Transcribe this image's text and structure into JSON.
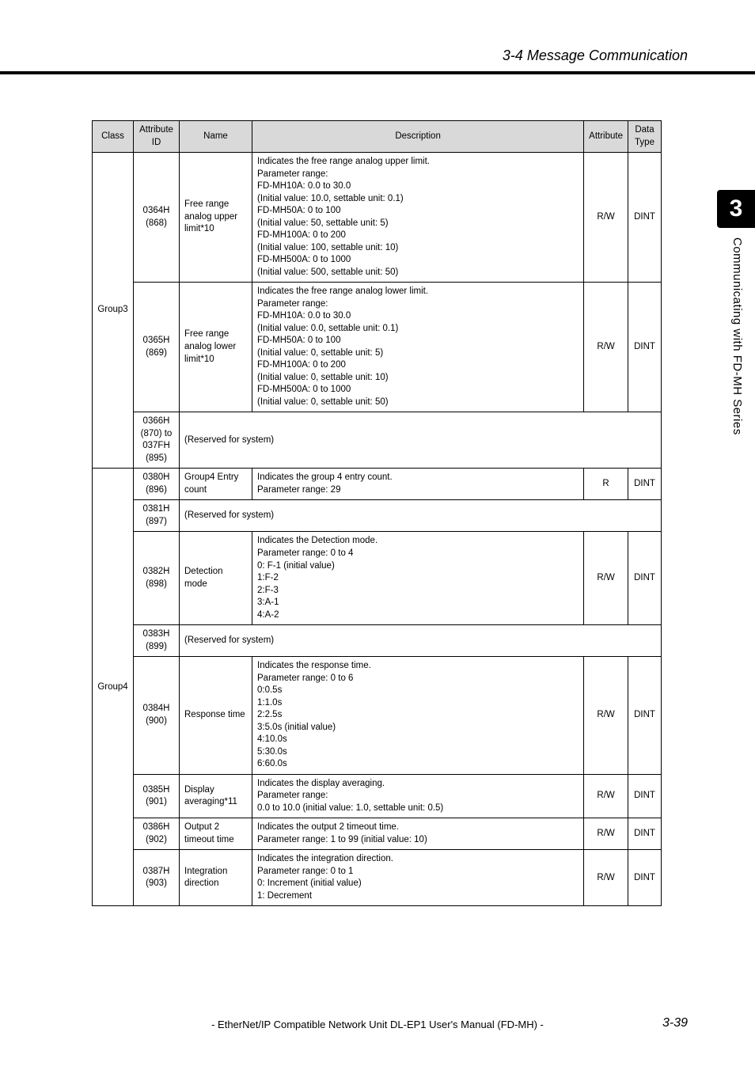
{
  "header": {
    "section_title": "3-4 Message Communication"
  },
  "side": {
    "chapter_num": "3",
    "chapter_text": "Communicating with FD-MH Series"
  },
  "table": {
    "headers": {
      "class": "Class",
      "attr_id": "Attribute ID",
      "name": "Name",
      "description": "Description",
      "attribute": "Attribute",
      "data_type": "Data Type"
    },
    "group3": {
      "label": "Group3",
      "r0": {
        "attr_id": "0364H (868)",
        "name": "Free range analog upper limit*10",
        "desc": "Indicates the free range analog upper limit.\nParameter range:\nFD-MH10A: 0.0 to 30.0\n(Initial value: 10.0, settable unit: 0.1)\nFD-MH50A: 0 to 100\n(Initial value: 50, settable unit: 5)\nFD-MH100A: 0 to 200\n(Initial value: 100, settable unit: 10)\nFD-MH500A: 0 to 1000\n(Initial value: 500, settable unit: 50)",
        "rw": "R/W",
        "dtype": "DINT"
      },
      "r1": {
        "attr_id": "0365H (869)",
        "name": "Free range analog lower limit*10",
        "desc": "Indicates the free range analog lower limit.\nParameter range:\nFD-MH10A: 0.0 to 30.0\n(Initial value: 0.0, settable unit: 0.1)\nFD-MH50A: 0 to 100\n(Initial value: 0, settable unit: 5)\nFD-MH100A: 0 to 200\n(Initial value: 0, settable unit: 10)\nFD-MH500A: 0 to 1000\n(Initial value: 0, settable unit: 50)",
        "rw": "R/W",
        "dtype": "DINT"
      },
      "r2": {
        "attr_id": "0366H (870) to 037FH (895)",
        "reserved": "(Reserved for system)"
      }
    },
    "group4": {
      "label": "Group4",
      "r0": {
        "attr_id": "0380H (896)",
        "name": "Group4 Entry count",
        "desc": "Indicates the group 4 entry count.\nParameter range: 29",
        "rw": "R",
        "dtype": "DINT"
      },
      "r1": {
        "attr_id": "0381H (897)",
        "reserved": "(Reserved for system)"
      },
      "r2": {
        "attr_id": "0382H (898)",
        "name": "Detection mode",
        "desc": "Indicates the Detection mode.\nParameter range: 0 to 4\n0: F-1 (initial value)\n1:F-2\n2:F-3\n3:A-1\n4:A-2",
        "rw": "R/W",
        "dtype": "DINT"
      },
      "r3": {
        "attr_id": "0383H (899)",
        "reserved": "(Reserved for system)"
      },
      "r4": {
        "attr_id": "0384H (900)",
        "name": "Response time",
        "desc": "Indicates the response time.\nParameter range: 0 to 6\n0:0.5s\n1:1.0s\n2:2.5s\n3:5.0s (initial value)\n4:10.0s\n5:30.0s\n6:60.0s",
        "rw": "R/W",
        "dtype": "DINT"
      },
      "r5": {
        "attr_id": "0385H (901)",
        "name": "Display averaging*11",
        "desc": "Indicates the display averaging.\nParameter range:\n0.0 to 10.0 (initial value: 1.0, settable unit: 0.5)",
        "rw": "R/W",
        "dtype": "DINT"
      },
      "r6": {
        "attr_id": "0386H (902)",
        "name": "Output 2 timeout time",
        "desc": "Indicates the output 2 timeout time.\nParameter range: 1 to 99 (initial value: 10)",
        "rw": "R/W",
        "dtype": "DINT"
      },
      "r7": {
        "attr_id": "0387H (903)",
        "name": "Integration direction",
        "desc": "Indicates the integration direction.\nParameter range: 0 to 1\n0: Increment (initial value)\n1: Decrement",
        "rw": "R/W",
        "dtype": "DINT"
      }
    }
  },
  "footer": {
    "text": "- EtherNet/IP Compatible Network Unit DL-EP1 User's Manual (FD-MH) -",
    "page": "3-39"
  }
}
